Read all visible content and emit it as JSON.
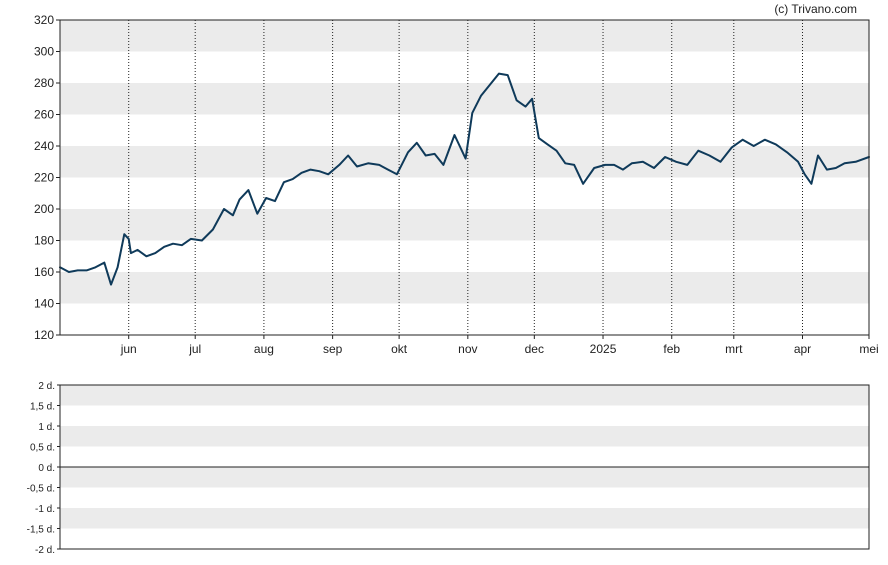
{
  "credit": "(c) Trivano.com",
  "chart_data": [
    {
      "type": "line",
      "title": "",
      "xlabel": "",
      "ylabel": "",
      "ylim": [
        120,
        320
      ],
      "yticks": [
        "320",
        "300",
        "280",
        "260",
        "240",
        "220",
        "200",
        "180",
        "160",
        "140",
        "120"
      ],
      "xticks": [
        "jun",
        "jul",
        "aug",
        "sep",
        "okt",
        "nov",
        "dec",
        "2025",
        "feb",
        "mrt",
        "apr",
        "mei"
      ],
      "grid": "alternating horizontal bands, dotted vertical month lines",
      "line_color": "#0f3a5a",
      "band_color": "#ebebeb",
      "series": [
        {
          "x": [
            "2024-05-01",
            "2024-05-05",
            "2024-05-09",
            "2024-05-13",
            "2024-05-17",
            "2024-05-21",
            "2024-05-24",
            "2024-05-27",
            "2024-05-30",
            "2024-06-01",
            "2024-06-02",
            "2024-06-05",
            "2024-06-09",
            "2024-06-13",
            "2024-06-17",
            "2024-06-21",
            "2024-06-25",
            "2024-06-29",
            "2024-07-04",
            "2024-07-09",
            "2024-07-14",
            "2024-07-18",
            "2024-07-21",
            "2024-07-25",
            "2024-07-29",
            "2024-08-02",
            "2024-08-06",
            "2024-08-10",
            "2024-08-14",
            "2024-08-18",
            "2024-08-22",
            "2024-08-26",
            "2024-08-30",
            "2024-09-04",
            "2024-09-08",
            "2024-09-12",
            "2024-09-17",
            "2024-09-22",
            "2024-09-26",
            "2024-09-30",
            "2024-10-05",
            "2024-10-09",
            "2024-10-13",
            "2024-10-17",
            "2024-10-21",
            "2024-10-26",
            "2024-10-31",
            "2024-11-03",
            "2024-11-07",
            "2024-11-11",
            "2024-11-15",
            "2024-11-19",
            "2024-11-23",
            "2024-11-27",
            "2024-11-30",
            "2024-12-03",
            "2024-12-07",
            "2024-12-11",
            "2024-12-15",
            "2024-12-19",
            "2024-12-23",
            "2024-12-28",
            "2025-01-02",
            "2025-01-06",
            "2025-01-10",
            "2025-01-14",
            "2025-01-19",
            "2025-01-24",
            "2025-01-29",
            "2025-02-03",
            "2025-02-08",
            "2025-02-13",
            "2025-02-18",
            "2025-02-23",
            "2025-02-28",
            "2025-03-05",
            "2025-03-10",
            "2025-03-15",
            "2025-03-20",
            "2025-03-25",
            "2025-03-30",
            "2025-04-02",
            "2025-04-05",
            "2025-04-08",
            "2025-04-12",
            "2025-04-16",
            "2025-04-20",
            "2025-04-25",
            "2025-05-01"
          ],
          "y": [
            163,
            160,
            161,
            161,
            163,
            166,
            152,
            163,
            184,
            181,
            172,
            174,
            170,
            172,
            176,
            178,
            177,
            181,
            180,
            187,
            200,
            196,
            206,
            212,
            197,
            207,
            205,
            217,
            219,
            223,
            225,
            224,
            222,
            228,
            234,
            227,
            229,
            228,
            225,
            222,
            236,
            242,
            234,
            235,
            228,
            247,
            232,
            261,
            272,
            279,
            286,
            285,
            269,
            265,
            270,
            245,
            241,
            237,
            229,
            228,
            216,
            226,
            228,
            228,
            225,
            229,
            230,
            226,
            233,
            230,
            228,
            237,
            234,
            230,
            239,
            244,
            240,
            244,
            241,
            236,
            230,
            222,
            216,
            234,
            225,
            226,
            229,
            230,
            233
          ]
        }
      ]
    },
    {
      "type": "area",
      "title": "",
      "ylim": [
        -2,
        2
      ],
      "yticks": [
        "2 d.",
        "1,5 d.",
        "1 d.",
        "0,5 d.",
        "0 d.",
        "-0,5 d.",
        "-1 d.",
        "-1,5 d.",
        "-2 d."
      ],
      "series": []
    }
  ]
}
